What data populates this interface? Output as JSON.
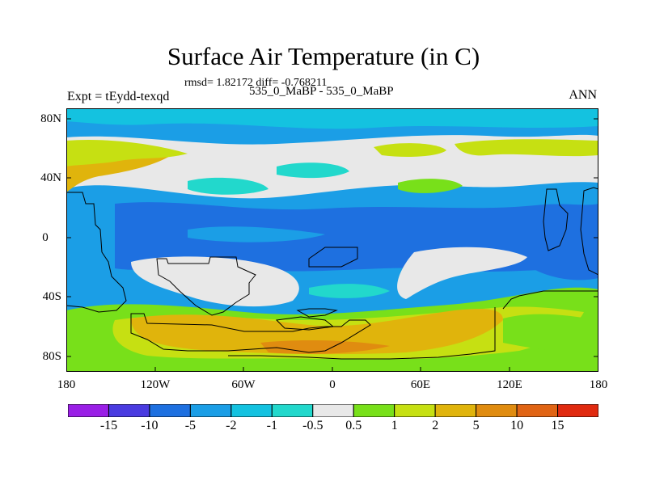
{
  "title": "Surface Air Temperature (in C)",
  "stats": "rmsd= 1.82172 diff= -0.768211",
  "experiment": "Expt = tEydd-texqd",
  "subtitle": "535_0_MaBP - 535_0_MaBP",
  "season": "ANN",
  "lat_labels": [
    "80N",
    "40N",
    "0",
    "40S",
    "80S"
  ],
  "lon_labels": [
    "180",
    "120W",
    "60W",
    "0",
    "60E",
    "120E",
    "180"
  ],
  "colorbar": {
    "labels": [
      "-15",
      "-10",
      "-5",
      "-2",
      "-1",
      "-0.5",
      "0.5",
      "1",
      "2",
      "5",
      "10",
      "15"
    ],
    "colors": [
      "#9a1fe6",
      "#4a3be0",
      "#1e70e0",
      "#1b9ee6",
      "#14c2e0",
      "#22d8cc",
      "#e8e8e8",
      "#78e01a",
      "#c6e012",
      "#e0b40c",
      "#e08c10",
      "#e06414",
      "#e02a10"
    ]
  }
}
